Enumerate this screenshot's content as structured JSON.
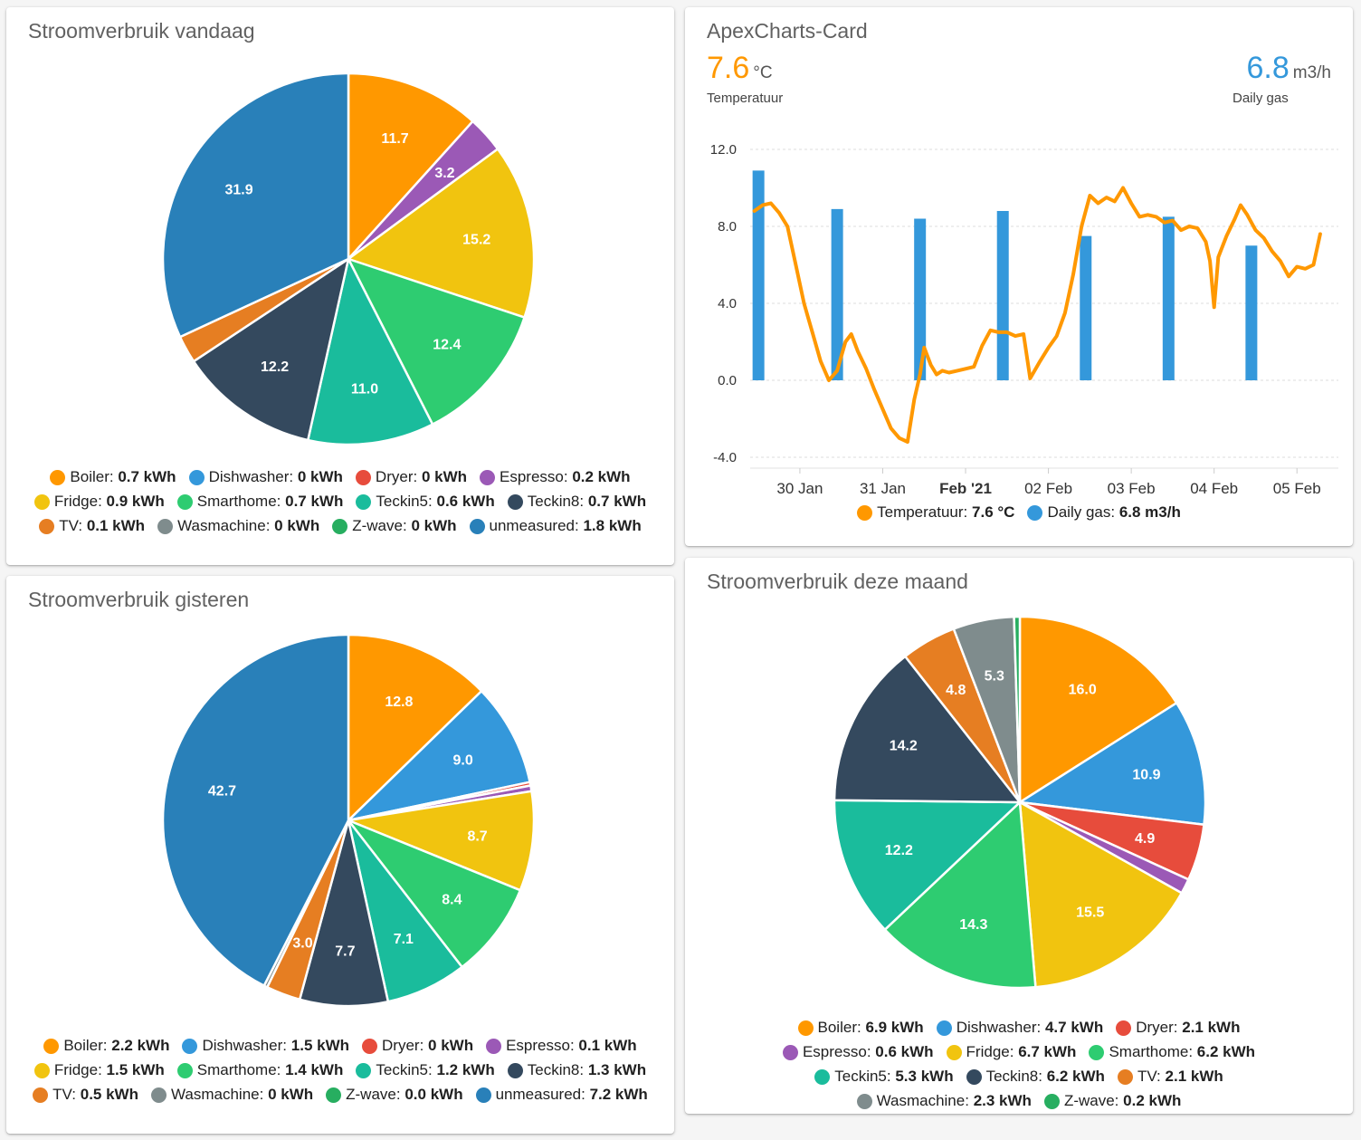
{
  "colors": {
    "Boiler": "#ff9800",
    "Dishwasher": "#3498db",
    "Dryer": "#e74c3c",
    "Espresso": "#9b59b6",
    "Fridge": "#f1c40f",
    "Smarthome": "#2ecc71",
    "Teckin5": "#1abc9c",
    "Teckin8": "#34495e",
    "TV": "#e67e22",
    "Wasmachine": "#7f8c8d",
    "Z-wave": "#27ae60",
    "unmeasured": "#2980b9",
    "temp_line": "#ff9800",
    "gas_bar": "#3498db"
  },
  "today": {
    "title": "Stroomverbruik vandaag",
    "legend": [
      {
        "name": "Boiler",
        "label": "Boiler:",
        "value": "0.7 kWh"
      },
      {
        "name": "Dishwasher",
        "label": "Dishwasher:",
        "value": "0 kWh"
      },
      {
        "name": "Dryer",
        "label": "Dryer:",
        "value": "0 kWh"
      },
      {
        "name": "Espresso",
        "label": "Espresso:",
        "value": "0.2 kWh"
      },
      {
        "name": "Fridge",
        "label": "Fridge:",
        "value": "0.9 kWh"
      },
      {
        "name": "Smarthome",
        "label": "Smarthome:",
        "value": "0.7 kWh"
      },
      {
        "name": "Teckin5",
        "label": "Teckin5:",
        "value": "0.6 kWh"
      },
      {
        "name": "Teckin8",
        "label": "Teckin8:",
        "value": "0.7 kWh"
      },
      {
        "name": "TV",
        "label": "TV:",
        "value": "0.1 kWh"
      },
      {
        "name": "Wasmachine",
        "label": "Wasmachine:",
        "value": "0 kWh"
      },
      {
        "name": "Z-wave",
        "label": "Z-wave:",
        "value": "0 kWh"
      },
      {
        "name": "unmeasured",
        "label": "unmeasured:",
        "value": "1.8 kWh"
      }
    ]
  },
  "yesterday": {
    "title": "Stroomverbruik gisteren",
    "legend": [
      {
        "name": "Boiler",
        "label": "Boiler:",
        "value": "2.2 kWh"
      },
      {
        "name": "Dishwasher",
        "label": "Dishwasher:",
        "value": "1.5 kWh"
      },
      {
        "name": "Dryer",
        "label": "Dryer:",
        "value": "0 kWh"
      },
      {
        "name": "Espresso",
        "label": "Espresso:",
        "value": "0.1 kWh"
      },
      {
        "name": "Fridge",
        "label": "Fridge:",
        "value": "1.5 kWh"
      },
      {
        "name": "Smarthome",
        "label": "Smarthome:",
        "value": "1.4 kWh"
      },
      {
        "name": "Teckin5",
        "label": "Teckin5:",
        "value": "1.2 kWh"
      },
      {
        "name": "Teckin8",
        "label": "Teckin8:",
        "value": "1.3 kWh"
      },
      {
        "name": "TV",
        "label": "TV:",
        "value": "0.5 kWh"
      },
      {
        "name": "Wasmachine",
        "label": "Wasmachine:",
        "value": "0 kWh"
      },
      {
        "name": "Z-wave",
        "label": "Z-wave:",
        "value": "0.0 kWh"
      },
      {
        "name": "unmeasured",
        "label": "unmeasured:",
        "value": "7.2 kWh"
      }
    ]
  },
  "month": {
    "title": "Stroomverbruik deze maand",
    "legend": [
      {
        "name": "Boiler",
        "label": "Boiler:",
        "value": "6.9 kWh"
      },
      {
        "name": "Dishwasher",
        "label": "Dishwasher:",
        "value": "4.7 kWh"
      },
      {
        "name": "Dryer",
        "label": "Dryer:",
        "value": "2.1 kWh"
      },
      {
        "name": "Espresso",
        "label": "Espresso:",
        "value": "0.6 kWh"
      },
      {
        "name": "Fridge",
        "label": "Fridge:",
        "value": "6.7 kWh"
      },
      {
        "name": "Smarthome",
        "label": "Smarthome:",
        "value": "6.2 kWh"
      },
      {
        "name": "Teckin5",
        "label": "Teckin5:",
        "value": "5.3 kWh"
      },
      {
        "name": "Teckin8",
        "label": "Teckin8:",
        "value": "6.2 kWh"
      },
      {
        "name": "TV",
        "label": "TV:",
        "value": "2.1 kWh"
      },
      {
        "name": "Wasmachine",
        "label": "Wasmachine:",
        "value": "2.3 kWh"
      },
      {
        "name": "Z-wave",
        "label": "Z-wave:",
        "value": "0.2 kWh"
      }
    ]
  },
  "apex": {
    "title": "ApexCharts-Card",
    "temp": {
      "value": "7.6",
      "unit": "°C",
      "name": "Temperatuur"
    },
    "gas": {
      "value": "6.8",
      "unit": "m3/h",
      "name": "Daily gas"
    },
    "legend": [
      {
        "name": "temp",
        "label": "Temperatuur:",
        "value": "7.6 °C"
      },
      {
        "name": "gas",
        "label": "Daily gas:",
        "value": "6.8 m3/h"
      }
    ]
  },
  "chart_data": [
    {
      "type": "pie",
      "id": "today",
      "title": "Stroomverbruik vandaag",
      "unit": "%",
      "slices": [
        {
          "name": "Boiler",
          "value": 11.7,
          "label": "11.7"
        },
        {
          "name": "Espresso",
          "value": 3.2,
          "label": "3.2"
        },
        {
          "name": "Fridge",
          "value": 15.2,
          "label": "15.2"
        },
        {
          "name": "Smarthome",
          "value": 12.4,
          "label": "12.4"
        },
        {
          "name": "Teckin5",
          "value": 11.0,
          "label": "11.0"
        },
        {
          "name": "Teckin8",
          "value": 12.2,
          "label": "12.2"
        },
        {
          "name": "TV",
          "value": 2.4,
          "label": ""
        },
        {
          "name": "unmeasured",
          "value": 31.9,
          "label": "31.9"
        }
      ]
    },
    {
      "type": "pie",
      "id": "yesterday",
      "title": "Stroomverbruik gisteren",
      "unit": "%",
      "slices": [
        {
          "name": "Boiler",
          "value": 12.8,
          "label": "12.8"
        },
        {
          "name": "Dishwasher",
          "value": 9.0,
          "label": "9.0"
        },
        {
          "name": "Dryer",
          "value": 0.3,
          "label": ""
        },
        {
          "name": "Espresso",
          "value": 0.5,
          "label": ""
        },
        {
          "name": "Fridge",
          "value": 8.7,
          "label": "8.7"
        },
        {
          "name": "Smarthome",
          "value": 8.4,
          "label": "8.4"
        },
        {
          "name": "Teckin5",
          "value": 7.1,
          "label": "7.1"
        },
        {
          "name": "Teckin8",
          "value": 7.7,
          "label": "7.7"
        },
        {
          "name": "TV",
          "value": 3.0,
          "label": "3.0"
        },
        {
          "name": "Wasmachine",
          "value": 0.3,
          "label": ""
        },
        {
          "name": "unmeasured",
          "value": 42.7,
          "label": "42.7"
        }
      ]
    },
    {
      "type": "pie",
      "id": "month",
      "title": "Stroomverbruik deze maand",
      "unit": "%",
      "slices": [
        {
          "name": "Boiler",
          "value": 16.0,
          "label": "16.0"
        },
        {
          "name": "Dishwasher",
          "value": 10.9,
          "label": "10.9"
        },
        {
          "name": "Dryer",
          "value": 4.9,
          "label": "4.9"
        },
        {
          "name": "Espresso",
          "value": 1.3,
          "label": ""
        },
        {
          "name": "Fridge",
          "value": 15.5,
          "label": "15.5"
        },
        {
          "name": "Smarthome",
          "value": 14.3,
          "label": "14.3"
        },
        {
          "name": "Teckin5",
          "value": 12.2,
          "label": "12.2"
        },
        {
          "name": "Teckin8",
          "value": 14.2,
          "label": "14.2"
        },
        {
          "name": "TV",
          "value": 4.8,
          "label": "4.8"
        },
        {
          "name": "Wasmachine",
          "value": 5.3,
          "label": "5.3"
        },
        {
          "name": "Z-wave",
          "value": 0.5,
          "label": ""
        }
      ]
    },
    {
      "type": "line+bar",
      "id": "apex",
      "title": "ApexCharts-Card",
      "ylim": [
        -4.0,
        12.0
      ],
      "yticks": [
        12.0,
        8.0,
        4.0,
        0.0,
        -4.0
      ],
      "xlim": [
        -0.6,
        6.5
      ],
      "xticks": [
        {
          "x": 0,
          "label": "30 Jan",
          "bold": false
        },
        {
          "x": 1,
          "label": "31 Jan",
          "bold": false
        },
        {
          "x": 2,
          "label": "Feb '21",
          "bold": true
        },
        {
          "x": 3,
          "label": "02 Feb",
          "bold": false
        },
        {
          "x": 4,
          "label": "03 Feb",
          "bold": false
        },
        {
          "x": 5,
          "label": "04 Feb",
          "bold": false
        },
        {
          "x": 6,
          "label": "05 Feb",
          "bold": false
        }
      ],
      "bars": {
        "name": "Daily gas",
        "unit": "m3/h",
        "points": [
          [
            -0.5,
            10.9
          ],
          [
            0.45,
            8.9
          ],
          [
            1.45,
            8.4
          ],
          [
            2.45,
            8.8
          ],
          [
            3.45,
            7.5
          ],
          [
            4.45,
            8.5
          ],
          [
            5.45,
            7.0
          ]
        ]
      },
      "line": {
        "name": "Temperatuur",
        "unit": "°C",
        "points": [
          [
            -0.55,
            8.8
          ],
          [
            -0.45,
            9.1
          ],
          [
            -0.35,
            9.2
          ],
          [
            -0.25,
            8.7
          ],
          [
            -0.15,
            8.0
          ],
          [
            -0.05,
            6.0
          ],
          [
            0.05,
            4.0
          ],
          [
            0.15,
            2.5
          ],
          [
            0.25,
            1.0
          ],
          [
            0.35,
            0.0
          ],
          [
            0.45,
            0.5
          ],
          [
            0.55,
            2.0
          ],
          [
            0.62,
            2.4
          ],
          [
            0.7,
            1.5
          ],
          [
            0.8,
            0.6
          ],
          [
            0.9,
            -0.5
          ],
          [
            1.0,
            -1.5
          ],
          [
            1.1,
            -2.5
          ],
          [
            1.2,
            -3.0
          ],
          [
            1.3,
            -3.2
          ],
          [
            1.38,
            -1.0
          ],
          [
            1.45,
            0.3
          ],
          [
            1.5,
            1.7
          ],
          [
            1.58,
            0.8
          ],
          [
            1.65,
            0.3
          ],
          [
            1.72,
            0.5
          ],
          [
            1.8,
            0.4
          ],
          [
            1.9,
            0.5
          ],
          [
            2.0,
            0.6
          ],
          [
            2.1,
            0.7
          ],
          [
            2.2,
            1.8
          ],
          [
            2.3,
            2.6
          ],
          [
            2.4,
            2.5
          ],
          [
            2.5,
            2.5
          ],
          [
            2.6,
            2.3
          ],
          [
            2.7,
            2.4
          ],
          [
            2.78,
            0.1
          ],
          [
            2.9,
            1.0
          ],
          [
            3.0,
            1.7
          ],
          [
            3.1,
            2.3
          ],
          [
            3.2,
            3.5
          ],
          [
            3.3,
            5.5
          ],
          [
            3.4,
            8.0
          ],
          [
            3.5,
            9.6
          ],
          [
            3.6,
            9.2
          ],
          [
            3.7,
            9.5
          ],
          [
            3.8,
            9.3
          ],
          [
            3.9,
            10.0
          ],
          [
            4.0,
            9.2
          ],
          [
            4.1,
            8.5
          ],
          [
            4.2,
            8.6
          ],
          [
            4.3,
            8.5
          ],
          [
            4.4,
            8.2
          ],
          [
            4.5,
            8.3
          ],
          [
            4.6,
            7.8
          ],
          [
            4.7,
            8.0
          ],
          [
            4.8,
            7.9
          ],
          [
            4.9,
            7.2
          ],
          [
            4.95,
            6.2
          ],
          [
            5.0,
            3.8
          ],
          [
            5.05,
            6.4
          ],
          [
            5.15,
            7.5
          ],
          [
            5.25,
            8.4
          ],
          [
            5.32,
            9.1
          ],
          [
            5.4,
            8.6
          ],
          [
            5.5,
            7.8
          ],
          [
            5.6,
            7.4
          ],
          [
            5.7,
            6.7
          ],
          [
            5.8,
            6.2
          ],
          [
            5.9,
            5.4
          ],
          [
            6.0,
            5.9
          ],
          [
            6.1,
            5.8
          ],
          [
            6.2,
            6.0
          ],
          [
            6.28,
            7.6
          ]
        ]
      }
    }
  ]
}
